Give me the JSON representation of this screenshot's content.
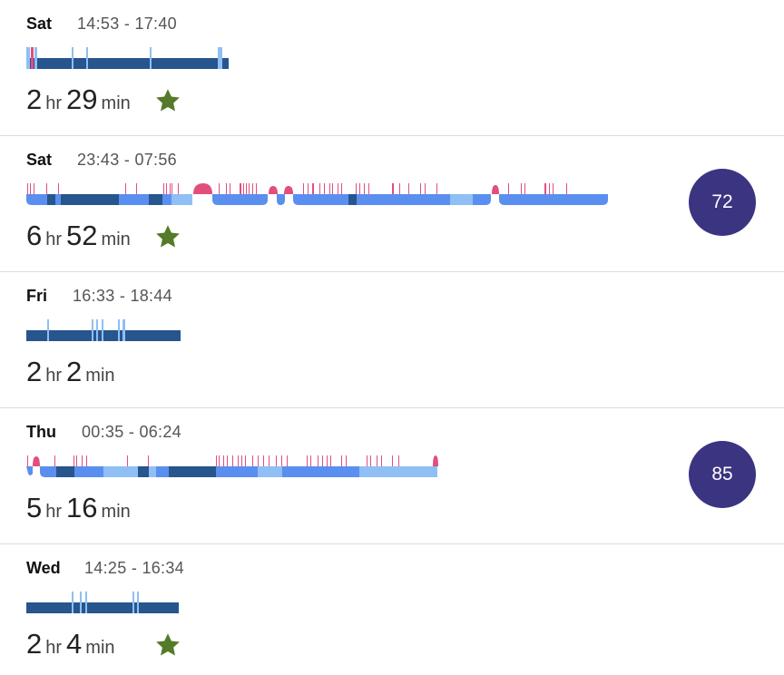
{
  "colors": {
    "deep": "#27558e",
    "core": "#5a8ff0",
    "light": "#8fbff5",
    "awake": "#e24f7a",
    "star": "#547a2a",
    "score_bg": "#3b3480"
  },
  "icons": {
    "star": "star-icon"
  },
  "entries": [
    {
      "day": "Sat",
      "range": "14:53 - 17:40",
      "hr": "2",
      "hr_unit": "hr",
      "min": "29",
      "min_unit": "min",
      "star": true,
      "score": null
    },
    {
      "day": "Sat",
      "range": "23:43 - 07:56",
      "hr": "6",
      "hr_unit": "hr",
      "min": "52",
      "min_unit": "min",
      "star": true,
      "score": "72"
    },
    {
      "day": "Fri",
      "range": "16:33 - 18:44",
      "hr": "2",
      "hr_unit": "hr",
      "min": "2",
      "min_unit": "min",
      "star": false,
      "score": null
    },
    {
      "day": "Thu",
      "range": "00:35 - 06:24",
      "hr": "5",
      "hr_unit": "hr",
      "min": "16",
      "min_unit": "min",
      "star": false,
      "score": "85"
    },
    {
      "day": "Wed",
      "range": "14:25 - 16:34",
      "hr": "2",
      "hr_unit": "hr",
      "min": "4",
      "min_unit": "min",
      "star": true,
      "score": null
    }
  ]
}
